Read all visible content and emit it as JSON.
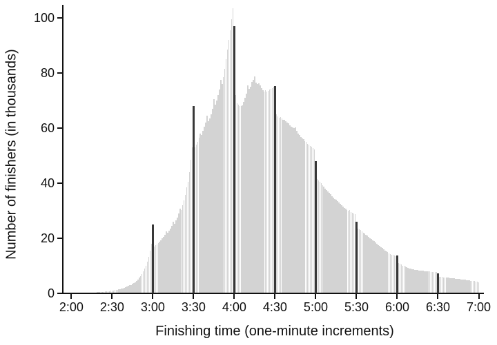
{
  "figure": {
    "background": "#ffffff"
  },
  "chart_data": {
    "type": "bar",
    "title": "",
    "xlabel": "Finishing time (one-minute increments)",
    "ylabel": "Number of finishers (in thousands)",
    "x_tick_labels": [
      "2:00",
      "2:30",
      "3:00",
      "3:30",
      "4:00",
      "4:30",
      "5:00",
      "5:30",
      "6:00",
      "6:30",
      "7:00"
    ],
    "x_tick_minutes": [
      120,
      150,
      180,
      210,
      240,
      270,
      300,
      330,
      360,
      390,
      420
    ],
    "y_ticks": [
      0,
      20,
      40,
      60,
      80,
      100
    ],
    "ylim": [
      0,
      105
    ],
    "xlim_minutes": [
      120,
      420
    ],
    "bin_width_minutes": 1,
    "grid": false,
    "legend": "none",
    "start_minute": 125,
    "values": [
      0.05,
      0.05,
      0.06,
      0.07,
      0.08,
      0.1,
      0.11,
      0.13,
      0.14,
      0.16,
      0.18,
      0.2,
      0.23,
      0.25,
      0.28,
      0.32,
      0.36,
      0.4,
      0.45,
      0.5,
      0.55,
      0.6,
      0.66,
      0.72,
      0.78,
      0.86,
      0.94,
      1.02,
      1.1,
      1.2,
      1.3,
      1.42,
      1.56,
      1.72,
      1.9,
      2.1,
      2.3,
      2.52,
      2.76,
      3.0,
      3.4,
      3.7,
      4.0,
      4.4,
      4.9,
      5.6,
      6.2,
      6.9,
      7.8,
      8.8,
      10.0,
      11.5,
      13.2,
      15.3,
      18.0,
      25.0,
      17.0,
      17.3,
      17.7,
      18.1,
      18.7,
      19.2,
      19.8,
      20.5,
      21.2,
      22.4,
      21.9,
      22.6,
      23.4,
      24.3,
      25.8,
      25.2,
      26.3,
      27.5,
      28.8,
      30.6,
      30.2,
      31.8,
      33.6,
      35.6,
      38.4,
      40.5,
      44.0,
      48.5,
      53.0,
      68.0,
      53.0,
      54.0,
      55.0,
      56.5,
      58.0,
      57.4,
      58.8,
      60.3,
      62.0,
      64.5,
      62.5,
      63.5,
      65.0,
      67.0,
      70.5,
      68.5,
      70.0,
      72.0,
      74.0,
      77.5,
      76.0,
      78.5,
      81.5,
      85.0,
      88.5,
      92.0,
      95.5,
      99.5,
      103.3,
      97.0,
      72.0,
      69.0,
      68.3,
      68.0,
      67.8,
      68.2,
      69.3,
      70.8,
      72.4,
      75.4,
      74.2,
      75.0,
      76.7,
      77.5,
      78.7,
      76.5,
      75.8,
      76.2,
      75.4,
      74.5,
      73.6,
      73.2,
      73.6,
      73.1,
      73.5,
      73.8,
      74.1,
      74.5,
      75.0,
      75.2,
      65.0,
      64.2,
      63.6,
      63.8,
      63.3,
      63.0,
      62.8,
      62.4,
      62.0,
      61.6,
      61.0,
      60.5,
      60.2,
      59.8,
      60.2,
      58.8,
      58.0,
      57.3,
      56.7,
      56.2,
      55.8,
      55.2,
      54.8,
      54.2,
      53.8,
      53.4,
      53.1,
      52.7,
      52.2,
      48.0,
      41.5,
      41.0,
      40.4,
      39.8,
      39.2,
      38.6,
      38.0,
      37.4,
      36.8,
      36.3,
      35.8,
      35.2,
      34.7,
      34.2,
      33.8,
      33.3,
      32.8,
      32.3,
      31.9,
      31.5,
      31.0,
      30.6,
      30.2,
      29.9,
      30.2,
      29.4,
      29.1,
      28.9,
      28.7,
      25.8,
      23.5,
      23.1,
      22.8,
      22.4,
      22.0,
      21.6,
      21.2,
      20.8,
      20.4,
      20.0,
      19.6,
      19.2,
      18.8,
      18.4,
      18.0,
      17.5,
      17.1,
      16.7,
      16.3,
      15.9,
      15.5,
      15.1,
      14.8,
      14.5,
      14.2,
      14.0,
      13.8,
      13.6,
      13.4,
      13.7,
      10.9,
      10.6,
      10.3,
      10.0,
      9.8,
      9.6,
      9.4,
      9.2,
      9.0,
      8.9,
      8.7,
      8.6,
      8.5,
      8.4,
      8.3,
      8.25,
      8.2,
      8.1,
      8.05,
      8.0,
      7.95,
      7.9,
      7.85,
      7.8,
      7.75,
      7.7,
      7.65,
      7.6,
      7.55,
      7.2,
      5.9,
      5.85,
      5.8,
      5.75,
      5.7,
      5.65,
      5.6,
      5.55,
      5.5,
      5.42,
      5.36,
      5.3,
      5.24,
      5.18,
      5.1,
      5.04,
      4.98,
      4.9,
      4.84,
      4.76,
      4.7,
      4.62,
      4.56,
      4.5,
      4.42,
      4.34,
      4.26,
      4.16,
      4.06,
      3.95
    ],
    "threshold_lines": [
      {
        "label": "3:00",
        "minute": 180,
        "value": 25.0
      },
      {
        "label": "3:30",
        "minute": 210,
        "value": 68.0
      },
      {
        "label": "4:00",
        "minute": 240,
        "value": 97.0
      },
      {
        "label": "4:30",
        "minute": 270,
        "value": 75.2
      },
      {
        "label": "5:00",
        "minute": 300,
        "value": 48.0
      },
      {
        "label": "5:30",
        "minute": 330,
        "value": 25.8
      },
      {
        "label": "6:00",
        "minute": 360,
        "value": 13.7
      },
      {
        "label": "6:30",
        "minute": 390,
        "value": 7.2
      }
    ],
    "bar_color": "#d3d3d3",
    "threshold_line_color": "#383838",
    "axis_color": "#111111",
    "text_color": "#111111"
  }
}
